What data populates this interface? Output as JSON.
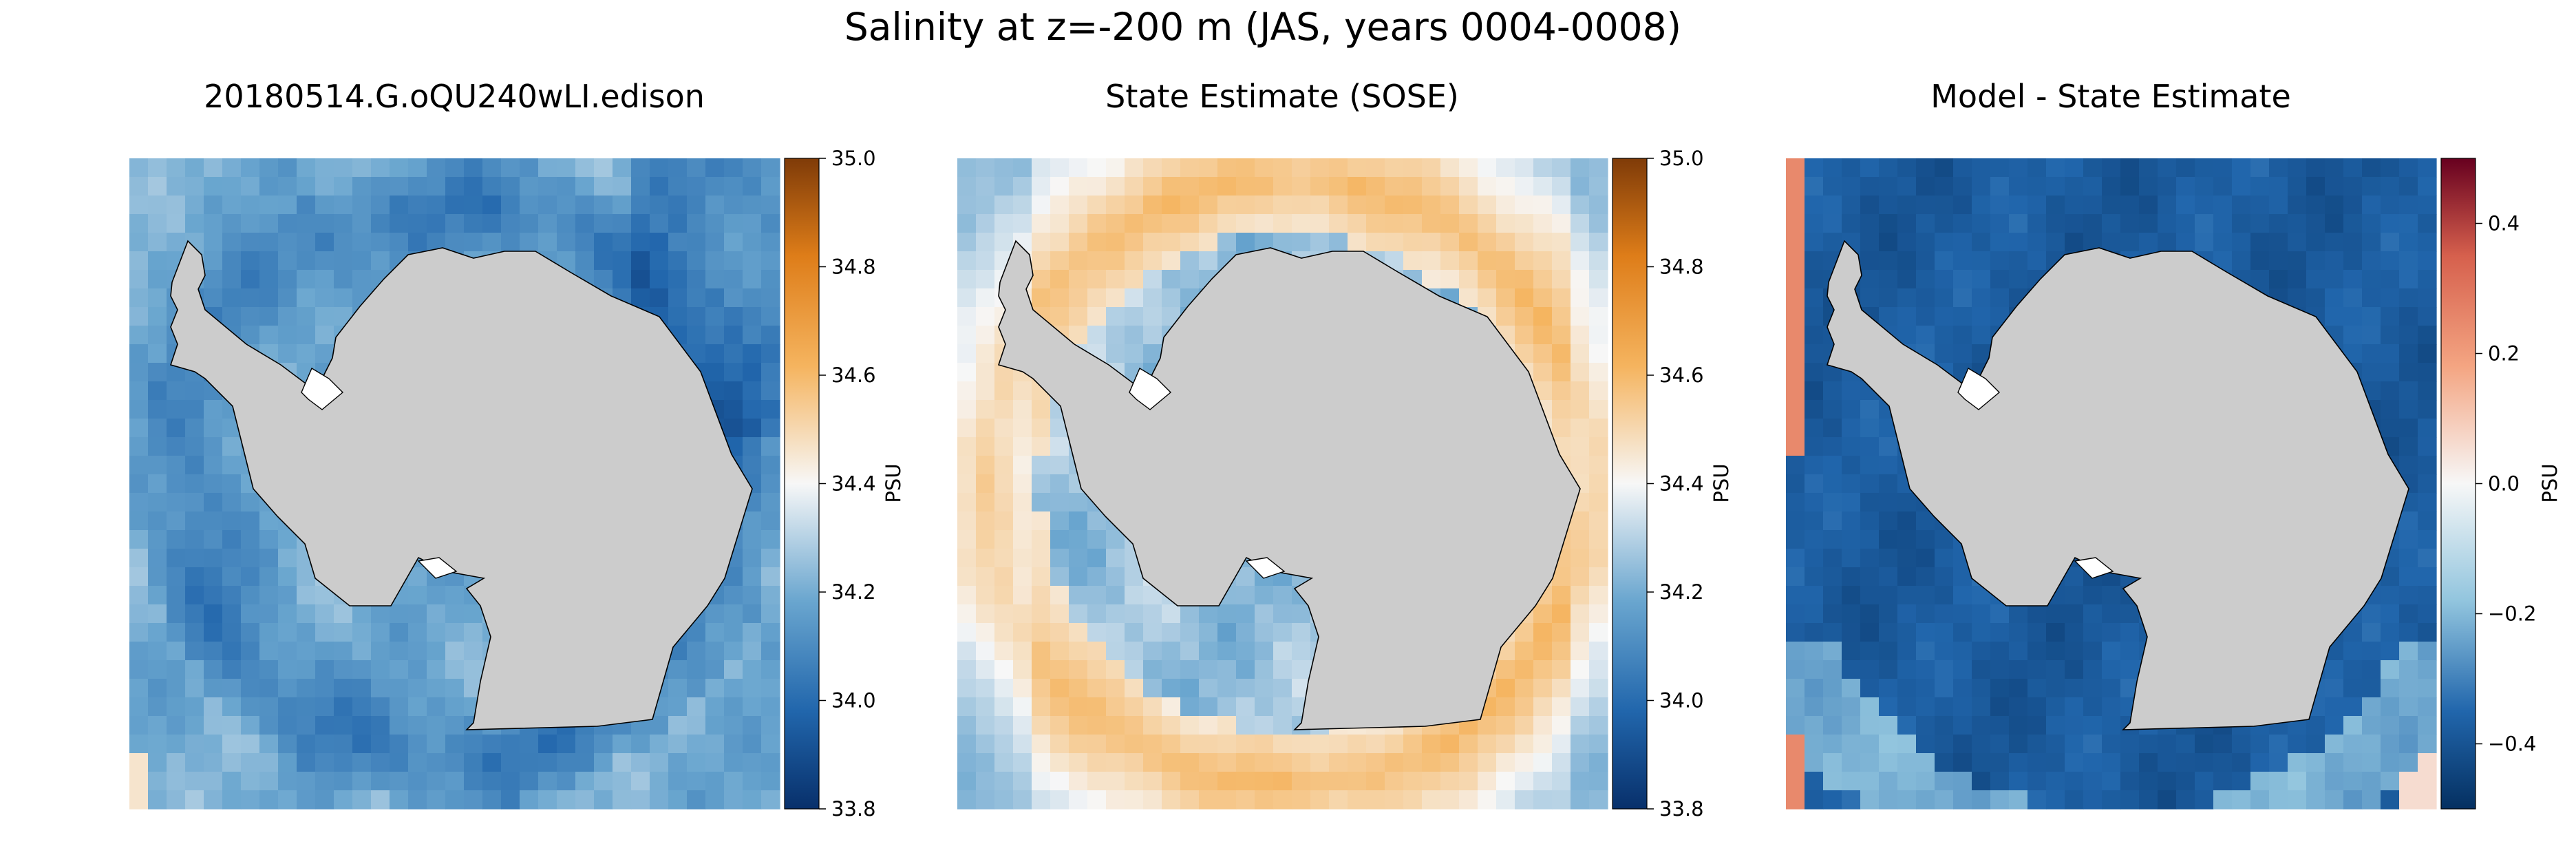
{
  "figure": {
    "title": "Salinity at z=-200 m (JAS, years 0004-0008)"
  },
  "chart_data": [
    {
      "type": "heatmap",
      "title": "20180514.G.oQU240wLI.edison",
      "colormap": "PuOr_r",
      "colorbar": {
        "label": "PSU",
        "range": [
          33.8,
          35.0
        ],
        "ticks": [
          "33.8",
          "34.0",
          "34.2",
          "34.4",
          "34.6",
          "34.8",
          "35.0"
        ],
        "tick_values": [
          33.8,
          34.0,
          34.2,
          34.4,
          34.6,
          34.8,
          35.0
        ]
      },
      "field_pattern": "model",
      "land_color": "#cccccc"
    },
    {
      "type": "heatmap",
      "title": "State Estimate (SOSE)",
      "colormap": "PuOr_r",
      "colorbar": {
        "label": "PSU",
        "range": [
          33.8,
          35.0
        ],
        "ticks": [
          "33.8",
          "34.0",
          "34.2",
          "34.4",
          "34.6",
          "34.8",
          "35.0"
        ],
        "tick_values": [
          33.8,
          34.0,
          34.2,
          34.4,
          34.6,
          34.8,
          35.0
        ]
      },
      "field_pattern": "sose",
      "land_color": "#cccccc"
    },
    {
      "type": "heatmap",
      "title": "Model - State Estimate",
      "colormap": "RdBu_r",
      "colorbar": {
        "label": "PSU",
        "range": [
          -0.5,
          0.5
        ],
        "ticks": [
          "−0.4",
          "−0.2",
          "0.0",
          "0.2",
          "0.4"
        ],
        "tick_values": [
          -0.4,
          -0.2,
          0.0,
          0.2,
          0.4
        ]
      },
      "field_pattern": "diff",
      "land_color": "#cccccc"
    }
  ]
}
